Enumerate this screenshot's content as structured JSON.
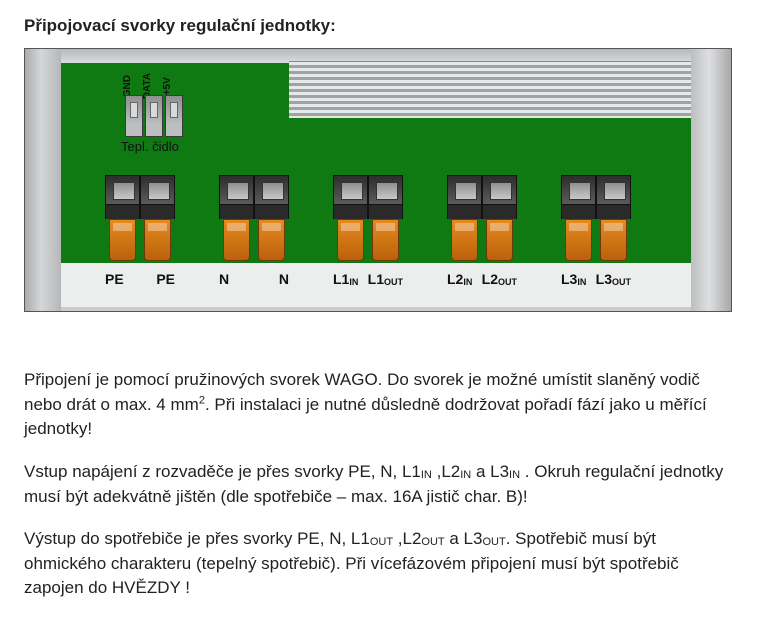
{
  "heading": "Připojovací svorky regulační jednotky:",
  "diagram": {
    "pcb_color": "#0f7a12",
    "enclosure_color": "#c9cbcc",
    "heatsink_light": "#e6e8ea",
    "heatsink_dark": "#9fa2a5",
    "sensor": {
      "pins": [
        "GND",
        "DATA",
        "+5V"
      ],
      "pin_labels": {
        "p0": "GND",
        "p1": "DATA",
        "p2": "+5V"
      },
      "caption": "Tepl. čidlo"
    },
    "terminal_lever_color": "#e68a1f",
    "terminal_body_color": "#2d2d2d",
    "terminals": [
      {
        "left": "PE",
        "right": "PE",
        "left_sub": "",
        "right_sub": ""
      },
      {
        "left": "N",
        "right": "N",
        "left_sub": "",
        "right_sub": ""
      },
      {
        "left": "L1",
        "right": "L1",
        "left_sub": "IN",
        "right_sub": "OUT"
      },
      {
        "left": "L2",
        "right": "L2",
        "left_sub": "IN",
        "right_sub": "OUT"
      },
      {
        "left": "L3",
        "right": "L3",
        "left_sub": "IN",
        "right_sub": "OUT"
      }
    ],
    "labels": {
      "t0l": "PE",
      "t0r": "PE",
      "t0ls": "",
      "t0rs": "",
      "t1l": "N",
      "t1r": "N",
      "t1ls": "",
      "t1rs": "",
      "t2l": "L1",
      "t2r": "L1",
      "t2ls": "IN",
      "t2rs": "OUT",
      "t3l": "L2",
      "t3r": "L2",
      "t3ls": "IN",
      "t3rs": "OUT",
      "t4l": "L3",
      "t4r": "L3",
      "t4ls": "IN",
      "t4rs": "OUT"
    }
  },
  "paragraphs": {
    "p1a": "Připojení je pomocí pružinových svorek WAGO. Do svorek je možné umístit slaněný vodič nebo drát o max. 4 mm",
    "p1b": ". Při instalaci je nutné důsledně dodržovat pořadí fází jako u měřící jednotky!",
    "p1sup": "2",
    "p2a": "Vstup napájení z rozvaděče je přes svorky PE, N, L1",
    "p2b": " ,L2",
    "p2c": " a L3",
    "p2d": " . Okruh regulační jednotky musí být adekvátně jištěn (dle spotřebiče – max. 16A jistič char. B)!",
    "p2s": "IN",
    "p3a": "Výstup do spotřebiče je přes svorky PE, N, L1",
    "p3b": " ,L2",
    "p3c": " a L3",
    "p3d": ". Spotřebič musí být ohmického charakteru (tepelný spotřebič). Při vícefázovém připojení musí být spotřebič zapojen do HVĚZDY !",
    "p3s": "OUT"
  }
}
